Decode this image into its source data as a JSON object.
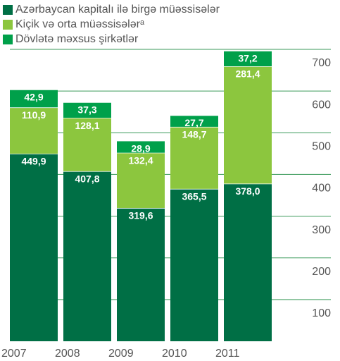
{
  "chart_data": {
    "type": "stacked_bar",
    "categories": [
      "2007",
      "2008",
      "2009",
      "2010",
      "2011"
    ],
    "series": [
      {
        "name": "Azərbaycan kapitalı ilə birgə müəssisələr",
        "color": "#006f45",
        "values": [
          449.9,
          407.8,
          319.6,
          365.5,
          378.0
        ],
        "value_labels": [
          "449,9",
          "407,8",
          "319,6",
          "365,5",
          "378,0"
        ]
      },
      {
        "name": "Kiçik və orta müəssisələrᵃ",
        "color": "#8cc63e",
        "values": [
          110.9,
          128.1,
          132.4,
          148.7,
          281.4
        ],
        "value_labels": [
          "110,9",
          "128,1",
          "132,4",
          "148,7",
          "281,4"
        ]
      },
      {
        "name": "Dövlətə məxsus şirkətlər",
        "color": "#00a04a",
        "values": [
          42.9,
          37.3,
          28.9,
          27.7,
          37.2
        ],
        "value_labels": [
          "42,9",
          "37,3",
          "28,9",
          "27,7",
          "37,2"
        ]
      }
    ],
    "ylim": [
      0,
      700
    ],
    "yticks": [
      100,
      200,
      300,
      400,
      500,
      600,
      700
    ],
    "grid": true,
    "legend": "top-left"
  }
}
